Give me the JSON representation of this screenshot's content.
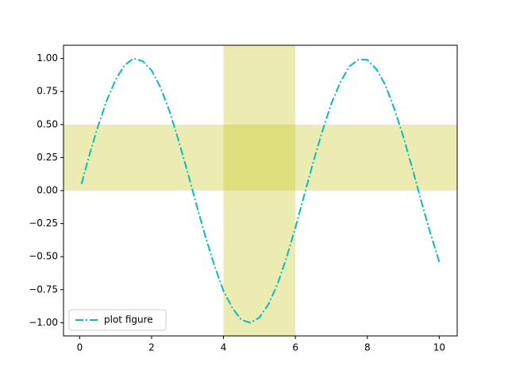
{
  "chart_data": {
    "type": "line",
    "x": [
      0.05,
      0.25,
      0.5,
      0.75,
      1.0,
      1.25,
      1.5,
      1.75,
      2.0,
      2.25,
      2.5,
      2.75,
      3.0,
      3.25,
      3.5,
      3.75,
      4.0,
      4.25,
      4.5,
      4.75,
      5.0,
      5.25,
      5.5,
      5.75,
      6.0,
      6.25,
      6.5,
      6.75,
      7.0,
      7.25,
      7.5,
      7.75,
      8.0,
      8.25,
      8.5,
      8.75,
      9.0,
      9.25,
      9.5,
      9.75,
      10.0
    ],
    "series": [
      {
        "name": "plot figure",
        "color": "#00bfbf",
        "values": [
          0.05,
          0.25,
          0.48,
          0.68,
          0.84,
          0.95,
          1.0,
          0.98,
          0.91,
          0.78,
          0.6,
          0.38,
          0.14,
          -0.11,
          -0.35,
          -0.57,
          -0.76,
          -0.89,
          -0.98,
          -1.0,
          -0.96,
          -0.86,
          -0.71,
          -0.51,
          -0.28,
          -0.03,
          0.22,
          0.45,
          0.66,
          0.82,
          0.94,
          0.99,
          0.99,
          0.92,
          0.8,
          0.62,
          0.41,
          0.17,
          -0.08,
          -0.32,
          -0.54
        ]
      }
    ],
    "vspan": [
      4,
      6
    ],
    "hspan": [
      0,
      0.5
    ],
    "span_color": "#bfbf00",
    "xlim": [
      -0.45,
      10.5
    ],
    "ylim": [
      -1.1,
      1.1
    ],
    "xticks": [
      0,
      2,
      4,
      6,
      8,
      10
    ],
    "yticks": [
      {
        "value": -1,
        "label": "−1.00"
      },
      {
        "value": -0.75,
        "label": "−0.75"
      },
      {
        "value": -0.5,
        "label": "−0.50"
      },
      {
        "value": -0.25,
        "label": "−0.25"
      },
      {
        "value": 0,
        "label": "0.00"
      },
      {
        "value": 0.25,
        "label": "0.25"
      },
      {
        "value": 0.5,
        "label": "0.50"
      },
      {
        "value": 0.75,
        "label": "0.75"
      },
      {
        "value": 1,
        "label": "1.00"
      }
    ],
    "legend": "lower left"
  }
}
